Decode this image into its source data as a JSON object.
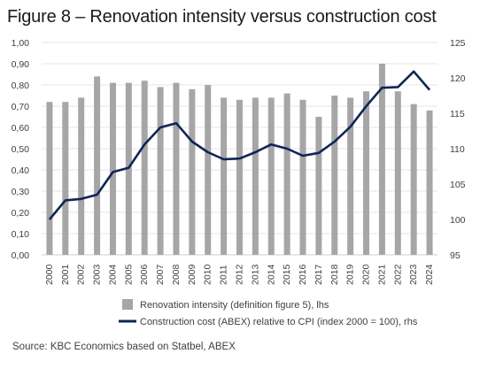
{
  "title": "Figure 8 – Renovation intensity versus construction cost",
  "source": "Source: KBC Economics based on Statbel, ABEX",
  "colors": {
    "bars": "#a6a6a6",
    "line": "#0f2557",
    "grid": "#e6e6e6"
  },
  "chart_data": {
    "type": "bar+line",
    "categories": [
      "2000",
      "2001",
      "2002",
      "2003",
      "2004",
      "2005",
      "2006",
      "2007",
      "2008",
      "2009",
      "2010",
      "2011",
      "2012",
      "2013",
      "2014",
      "2015",
      "2016",
      "2017",
      "2018",
      "2019",
      "2020",
      "2021",
      "2022",
      "2023",
      "2024"
    ],
    "series": [
      {
        "name": "Renovation intensity (definition figure 5), lhs",
        "type": "bar",
        "axis": "left",
        "values": [
          0.72,
          0.72,
          0.74,
          0.84,
          0.81,
          0.81,
          0.82,
          0.79,
          0.81,
          0.78,
          0.8,
          0.74,
          0.73,
          0.74,
          0.74,
          0.76,
          0.73,
          0.65,
          0.75,
          0.74,
          0.77,
          0.9,
          0.77,
          0.71,
          0.68
        ]
      },
      {
        "name": "Construction cost (ABEX) relative to CPI (index 2000 = 100), rhs",
        "type": "line",
        "axis": "right",
        "values": [
          100.0,
          102.7,
          102.9,
          103.5,
          106.7,
          107.3,
          110.6,
          113.0,
          113.6,
          111.0,
          109.5,
          108.5,
          108.6,
          109.5,
          110.6,
          110.0,
          109.0,
          109.4,
          111.0,
          113.1,
          116.0,
          118.6,
          118.7,
          120.9,
          118.3
        ]
      }
    ],
    "y_left": {
      "min": 0,
      "max": 1.0,
      "ticks": [
        "0,00",
        "0,10",
        "0,20",
        "0,30",
        "0,40",
        "0,50",
        "0,60",
        "0,70",
        "0,80",
        "0,90",
        "1,00"
      ]
    },
    "y_right": {
      "min": 95,
      "max": 125,
      "ticks": [
        "95",
        "100",
        "105",
        "110",
        "115",
        "120",
        "125"
      ]
    },
    "grid": true,
    "legend_position": "bottom"
  }
}
